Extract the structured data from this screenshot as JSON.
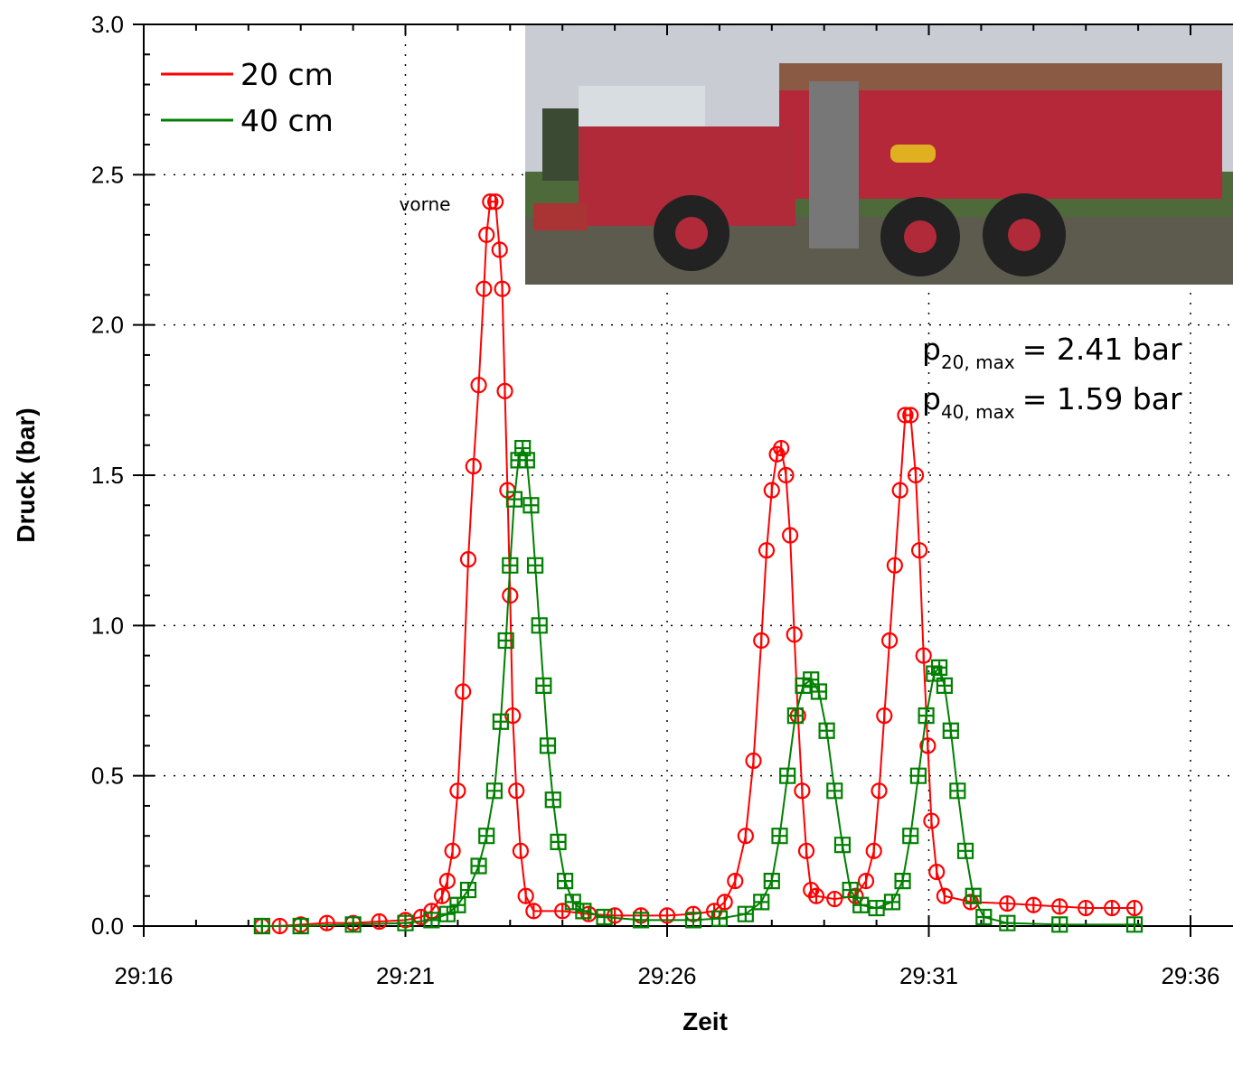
{
  "chart_data": {
    "type": "line",
    "x_label": "Zeit",
    "y_label": "Druck (bar)",
    "xlim": [
      16,
      36
    ],
    "ylim": [
      0,
      3.0
    ],
    "xticks": [
      {
        "value": 16,
        "label": "29:16"
      },
      {
        "value": 21,
        "label": "29:21"
      },
      {
        "value": 26,
        "label": "29:26"
      },
      {
        "value": 31,
        "label": "29:31"
      },
      {
        "value": 36,
        "label": "29:36"
      }
    ],
    "yticks": [
      {
        "value": 0,
        "label": "0.0"
      },
      {
        "value": 0.5,
        "label": "0.5"
      },
      {
        "value": 1.0,
        "label": "1.0"
      },
      {
        "value": 1.5,
        "label": "1.5"
      },
      {
        "value": 2.0,
        "label": "2.0"
      },
      {
        "value": 2.5,
        "label": "2.5"
      },
      {
        "value": 3.0,
        "label": "3.0"
      }
    ],
    "xminorticks": [
      17,
      18,
      19,
      20,
      22,
      23,
      24,
      25,
      27,
      28,
      29,
      30,
      32,
      33,
      34,
      35
    ],
    "yminorticks": [
      0.1,
      0.2,
      0.3,
      0.4,
      0.6,
      0.7,
      0.8,
      0.9,
      1.1,
      1.2,
      1.3,
      1.4,
      1.6,
      1.7,
      1.8,
      1.9,
      2.1,
      2.2,
      2.3,
      2.4,
      2.6,
      2.7,
      2.8,
      2.9
    ],
    "grid": true,
    "legend": "top-left",
    "series": [
      {
        "name": "20 cm",
        "color": "#ff0000",
        "marker": "circle",
        "x": [
          18.26,
          18.6,
          19.0,
          19.5,
          20.0,
          20.5,
          21.0,
          21.3,
          21.5,
          21.7,
          21.8,
          21.9,
          22.0,
          22.1,
          22.2,
          22.3,
          22.4,
          22.5,
          22.55,
          22.62,
          22.72,
          22.8,
          22.85,
          22.9,
          22.95,
          23.0,
          23.05,
          23.12,
          23.2,
          23.3,
          23.45,
          24.0,
          24.5,
          25.0,
          25.5,
          26.0,
          26.5,
          26.9,
          27.1,
          27.3,
          27.5,
          27.65,
          27.8,
          27.9,
          28.0,
          28.1,
          28.18,
          28.27,
          28.35,
          28.43,
          28.5,
          28.58,
          28.66,
          28.75,
          28.85,
          29.2,
          29.6,
          29.8,
          29.95,
          30.05,
          30.15,
          30.25,
          30.35,
          30.45,
          30.55,
          30.65,
          30.75,
          30.82,
          30.9,
          30.98,
          31.05,
          31.15,
          31.3,
          31.8,
          32.5,
          33.0,
          33.5,
          34.0,
          34.5,
          34.93
        ],
        "values": [
          0,
          0,
          0.005,
          0.01,
          0.01,
          0.015,
          0.02,
          0.03,
          0.05,
          0.1,
          0.15,
          0.25,
          0.45,
          0.78,
          1.22,
          1.53,
          1.8,
          2.12,
          2.3,
          2.41,
          2.41,
          2.25,
          2.12,
          1.78,
          1.45,
          1.1,
          0.7,
          0.45,
          0.25,
          0.1,
          0.05,
          0.05,
          0.04,
          0.035,
          0.035,
          0.035,
          0.04,
          0.05,
          0.08,
          0.15,
          0.3,
          0.55,
          0.95,
          1.25,
          1.45,
          1.57,
          1.59,
          1.5,
          1.3,
          0.97,
          0.7,
          0.45,
          0.25,
          0.12,
          0.1,
          0.09,
          0.1,
          0.15,
          0.25,
          0.45,
          0.7,
          0.95,
          1.2,
          1.45,
          1.7,
          1.7,
          1.5,
          1.25,
          0.9,
          0.6,
          0.35,
          0.18,
          0.1,
          0.08,
          0.075,
          0.07,
          0.065,
          0.06,
          0.06,
          0.06
        ]
      },
      {
        "name": "40 cm",
        "color": "#008000",
        "marker": "square",
        "x": [
          18.26,
          19.0,
          20.0,
          21.0,
          21.5,
          21.8,
          22.0,
          22.2,
          22.4,
          22.55,
          22.7,
          22.82,
          22.92,
          23.0,
          23.08,
          23.16,
          23.24,
          23.32,
          23.4,
          23.48,
          23.56,
          23.64,
          23.72,
          23.82,
          23.92,
          24.05,
          24.2,
          24.4,
          24.8,
          25.5,
          26.5,
          27.0,
          27.5,
          27.8,
          28.0,
          28.15,
          28.3,
          28.45,
          28.6,
          28.75,
          28.9,
          29.05,
          29.2,
          29.35,
          29.5,
          29.7,
          30.0,
          30.3,
          30.5,
          30.65,
          30.8,
          30.95,
          31.1,
          31.2,
          31.3,
          31.42,
          31.55,
          31.7,
          31.85,
          32.05,
          32.5,
          33.5,
          34.93
        ],
        "values": [
          0,
          0,
          0.005,
          0.01,
          0.02,
          0.04,
          0.07,
          0.12,
          0.2,
          0.3,
          0.45,
          0.68,
          0.95,
          1.2,
          1.42,
          1.55,
          1.59,
          1.55,
          1.4,
          1.2,
          1.0,
          0.8,
          0.6,
          0.42,
          0.28,
          0.15,
          0.08,
          0.05,
          0.03,
          0.02,
          0.02,
          0.025,
          0.04,
          0.08,
          0.15,
          0.3,
          0.5,
          0.7,
          0.8,
          0.82,
          0.78,
          0.65,
          0.45,
          0.27,
          0.12,
          0.07,
          0.06,
          0.08,
          0.15,
          0.3,
          0.5,
          0.7,
          0.84,
          0.86,
          0.8,
          0.65,
          0.45,
          0.25,
          0.1,
          0.03,
          0.01,
          0.005,
          0.005
        ]
      }
    ],
    "annotations": [
      {
        "text": "vorne"
      },
      {
        "symbol": "p",
        "subscript": "20, max",
        "text": "= 2.41 bar"
      },
      {
        "symbol": "p",
        "subscript": "40, max",
        "text": "= 1.59 bar"
      }
    ]
  }
}
